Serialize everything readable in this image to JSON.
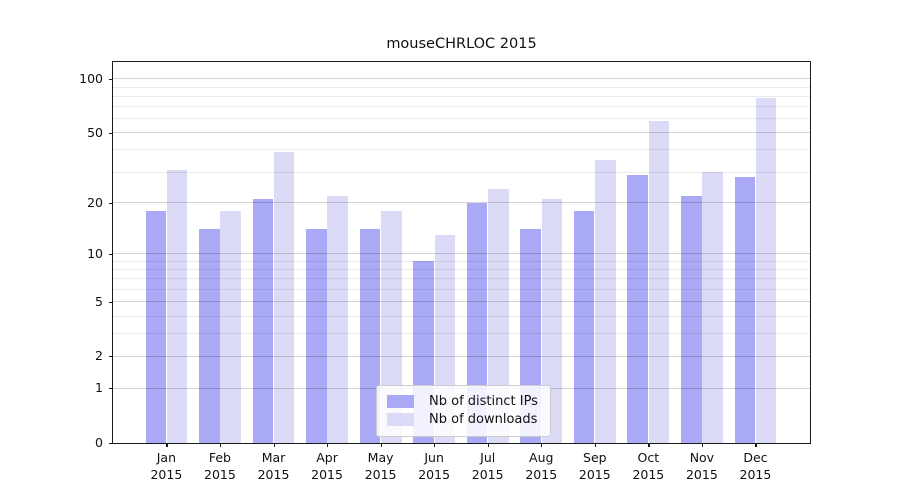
{
  "chart_data": {
    "type": "bar",
    "title": "mouseCHRLOC 2015",
    "categories": [
      "Jan",
      "Feb",
      "Mar",
      "Apr",
      "May",
      "Jun",
      "Jul",
      "Aug",
      "Sep",
      "Oct",
      "Nov",
      "Dec"
    ],
    "year": "2015",
    "series": [
      {
        "name": "Nb of distinct IPs",
        "color": "#a9a9f5",
        "values": [
          18,
          14,
          21,
          14,
          14,
          9,
          20,
          14,
          18,
          29,
          22,
          28
        ]
      },
      {
        "name": "Nb of downloads",
        "color": "#dbdbf8",
        "values": [
          31,
          18,
          39,
          22,
          18,
          13,
          24,
          21,
          35,
          58,
          30,
          78
        ]
      }
    ],
    "xlabel": "",
    "ylabel": "",
    "scale": "log1p",
    "ylim": [
      0,
      124
    ],
    "y_ticks": [
      0,
      1,
      2,
      5,
      10,
      20,
      50,
      100
    ],
    "gridlines": [
      1,
      2,
      3,
      4,
      5,
      6,
      7,
      8,
      9,
      10,
      20,
      30,
      40,
      50,
      60,
      70,
      80,
      90,
      100
    ],
    "grid": true,
    "legend_position": "lower center"
  }
}
